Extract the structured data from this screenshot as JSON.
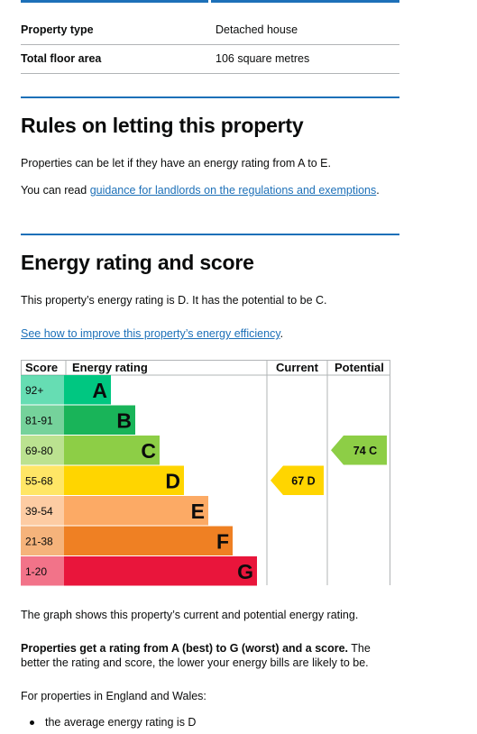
{
  "summary": {
    "rows": [
      {
        "label": "Property type",
        "value": "Detached house"
      },
      {
        "label": "Total floor area",
        "value": "106 square metres"
      }
    ]
  },
  "letting": {
    "heading": "Rules on letting this property",
    "para1": "Properties can be let if they have an energy rating from A to E.",
    "para2_prefix": "You can read ",
    "para2_link": "guidance for landlords on the regulations and exemptions",
    "para2_suffix": "."
  },
  "energy": {
    "heading": "Energy rating and score",
    "para1": "This property’s energy rating is D. It has the potential to be C.",
    "improve_link": "See how to improve this property’s energy efficiency",
    "improve_suffix": "."
  },
  "chart_data": {
    "type": "table",
    "columns": [
      "Score",
      "Energy rating",
      "Current",
      "Potential"
    ],
    "bands": [
      {
        "score": "92+",
        "letter": "A",
        "color": "#00c781"
      },
      {
        "score": "81-91",
        "letter": "B",
        "color": "#19b459"
      },
      {
        "score": "69-80",
        "letter": "C",
        "color": "#8dce46"
      },
      {
        "score": "55-68",
        "letter": "D",
        "color": "#ffd500"
      },
      {
        "score": "39-54",
        "letter": "E",
        "color": "#fcaa65"
      },
      {
        "score": "21-38",
        "letter": "F",
        "color": "#ef8023"
      },
      {
        "score": "1-20",
        "letter": "G",
        "color": "#e9153b"
      }
    ],
    "current": {
      "score": 67,
      "letter": "D",
      "label": "67 D",
      "color": "#ffd500"
    },
    "potential": {
      "score": 74,
      "letter": "C",
      "label": "74 C",
      "color": "#8dce46"
    }
  },
  "after": {
    "graph_note": "The graph shows this property’s current and potential energy rating.",
    "bold_part": "Properties get a rating from A (best) to G (worst) and a score.",
    "rest_part": " The better the rating and score, the lower your energy bills are likely to be.",
    "england_wales": "For properties in England and Wales:",
    "bullets": [
      "the average energy rating is D"
    ]
  }
}
